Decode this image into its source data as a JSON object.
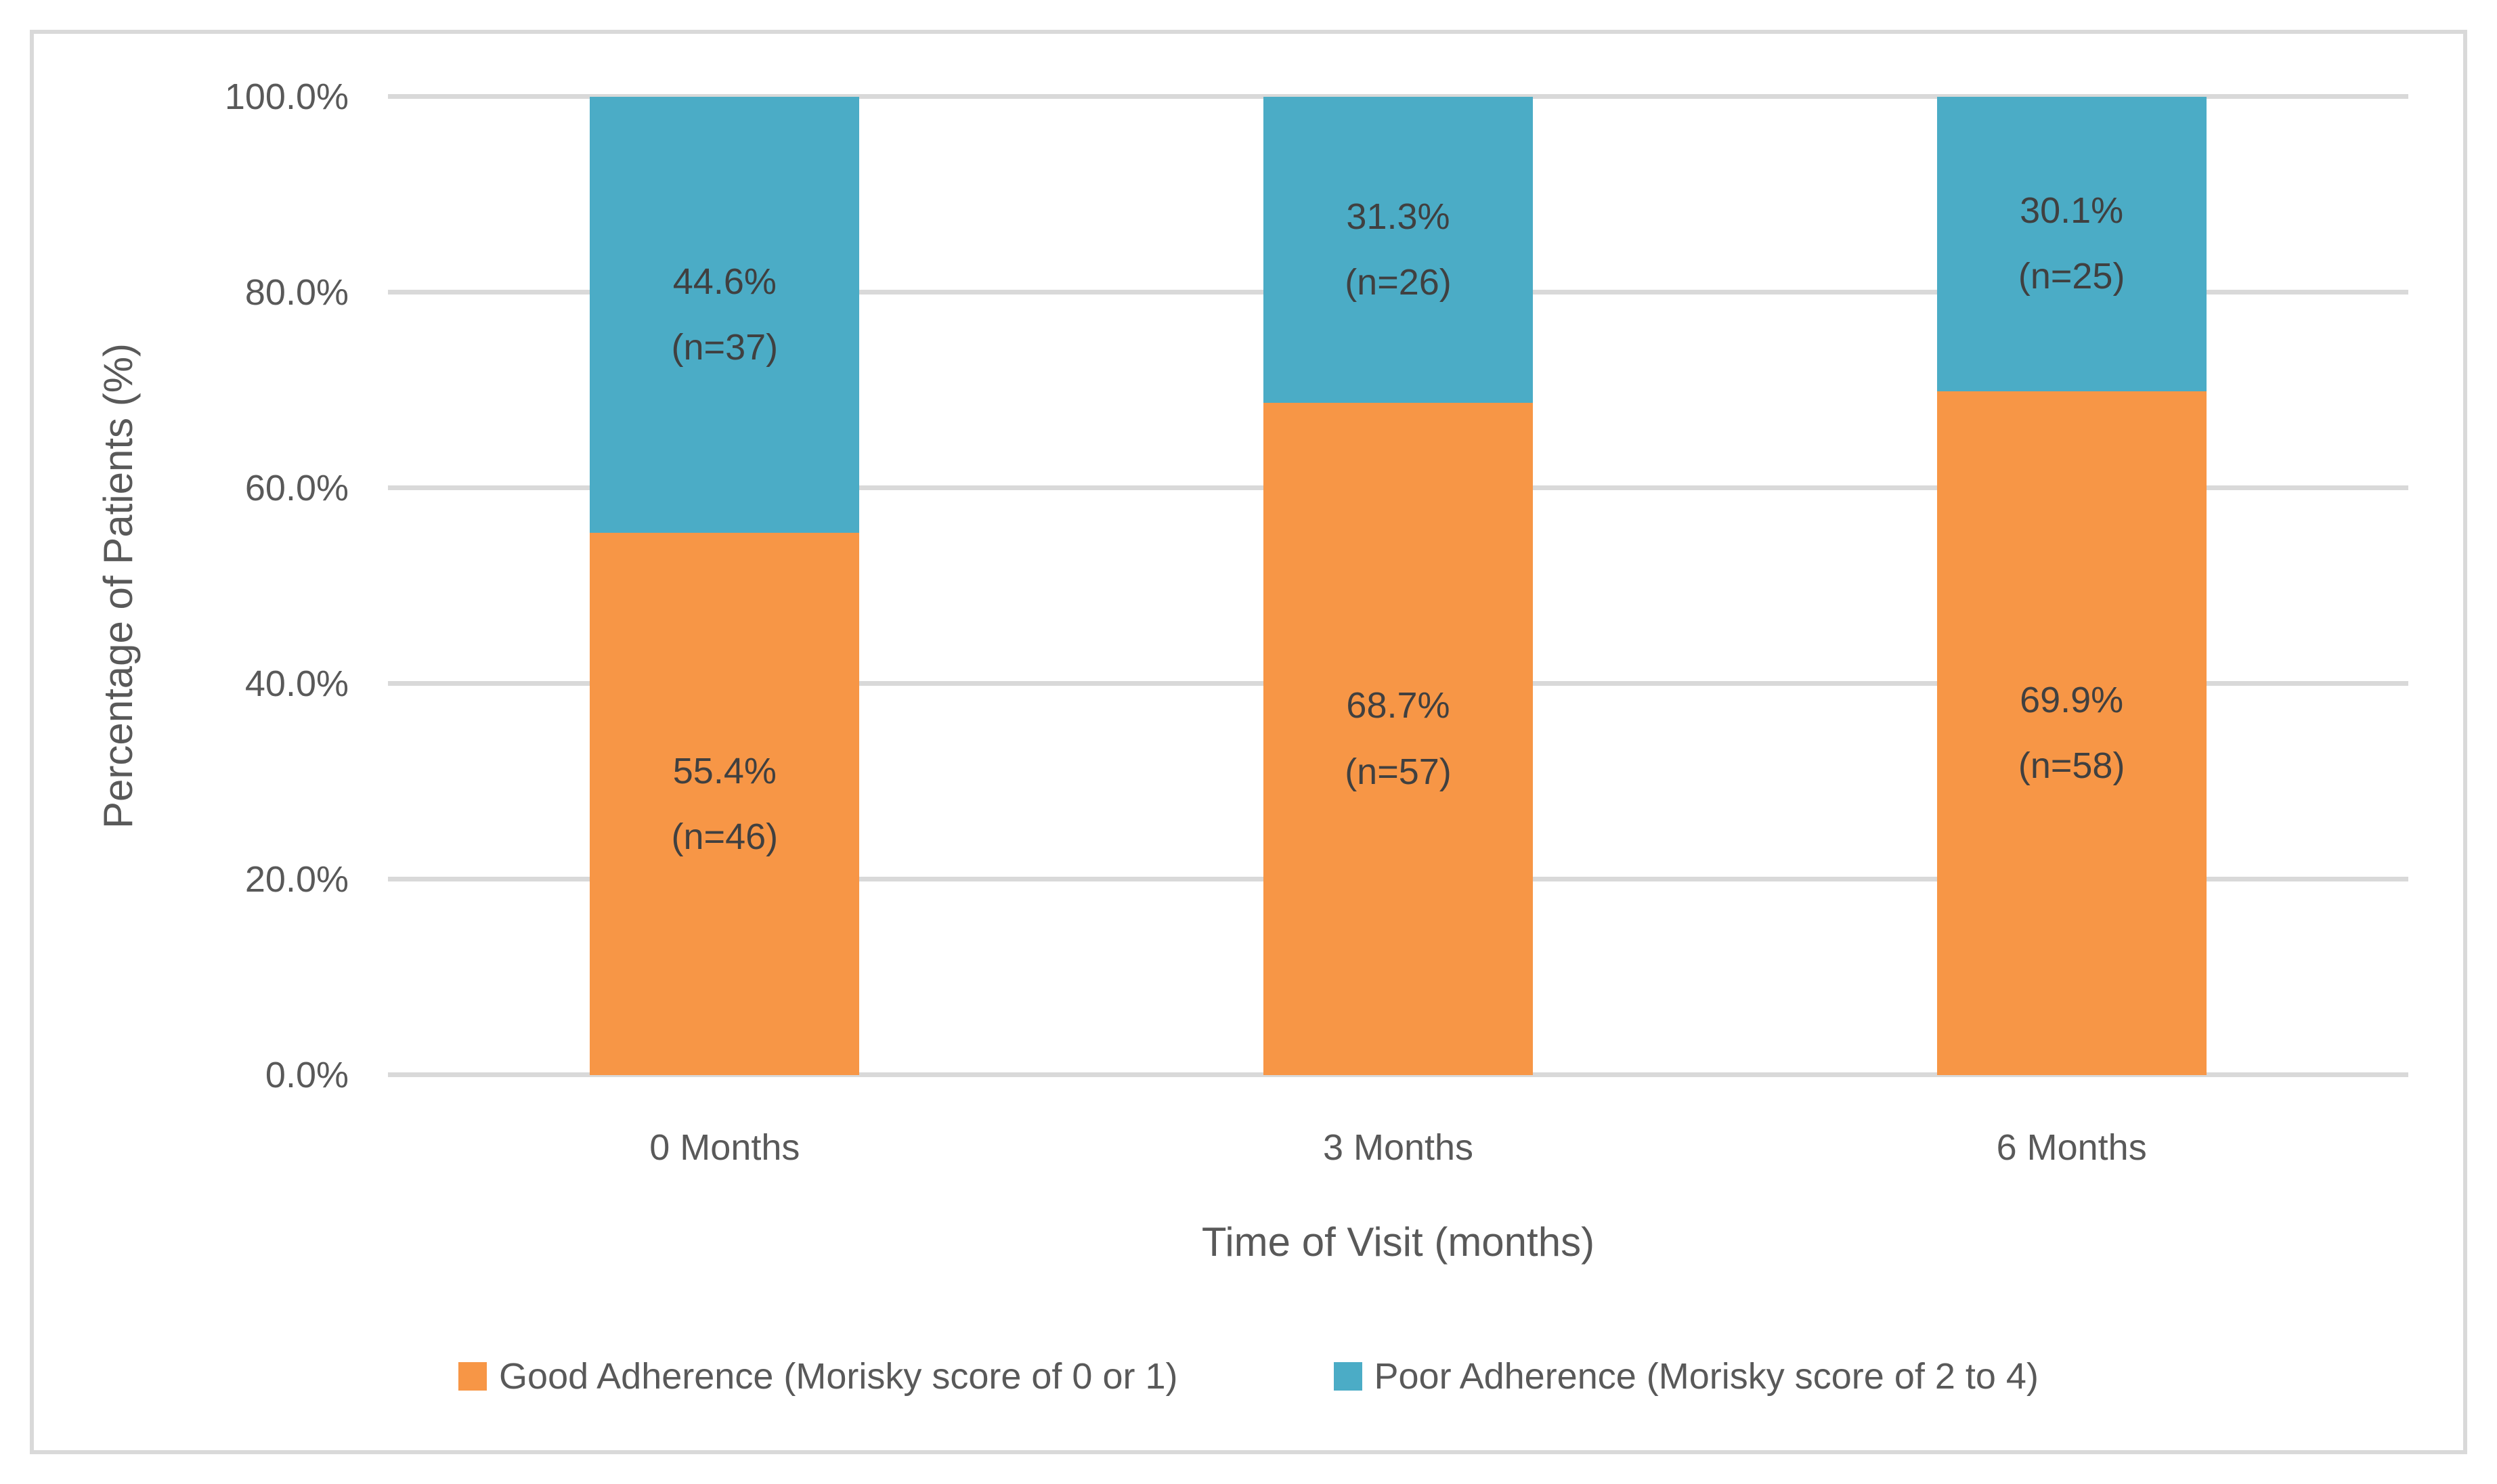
{
  "chart_data": {
    "type": "bar",
    "stacked": true,
    "title": "",
    "categories": [
      "0 Months",
      "3 Months",
      "6 Months"
    ],
    "series": [
      {
        "name": "Good Adherence (Morisky score of 0 or 1)",
        "color": "#F79646",
        "values": [
          55.4,
          68.7,
          69.9
        ],
        "counts": [
          46,
          57,
          58
        ],
        "labels": [
          [
            "55.4%",
            "(n=46)"
          ],
          [
            "68.7%",
            "(n=57)"
          ],
          [
            "69.9%",
            "(n=58)"
          ]
        ]
      },
      {
        "name": "Poor Adherence (Morisky score of 2 to 4)",
        "color": "#4BACC6",
        "values": [
          44.6,
          31.3,
          30.1
        ],
        "counts": [
          37,
          26,
          25
        ],
        "labels": [
          [
            "44.6%",
            "(n=37)"
          ],
          [
            "31.3%",
            "(n=26)"
          ],
          [
            "30.1%",
            "(n=25)"
          ]
        ]
      }
    ],
    "xlabel": "Time of Visit (months)",
    "ylabel": "Percentage of Patients (%)",
    "ylim": [
      0,
      100
    ],
    "yticks": [
      {
        "label": "0.0%",
        "value": 0
      },
      {
        "label": "20.0%",
        "value": 20
      },
      {
        "label": "40.0%",
        "value": 40
      },
      {
        "label": "60.0%",
        "value": 60
      },
      {
        "label": "80.0%",
        "value": 80
      },
      {
        "label": "100.0%",
        "value": 100
      }
    ],
    "grid": "horizontal",
    "legend_position": "bottom"
  },
  "colors": {
    "good_adherence": "#F79646",
    "poor_adherence": "#4BACC6",
    "gridline": "#D9D9D9",
    "border": "#D9D9D9",
    "axis_text": "#595959",
    "data_label_text": "#404040"
  }
}
